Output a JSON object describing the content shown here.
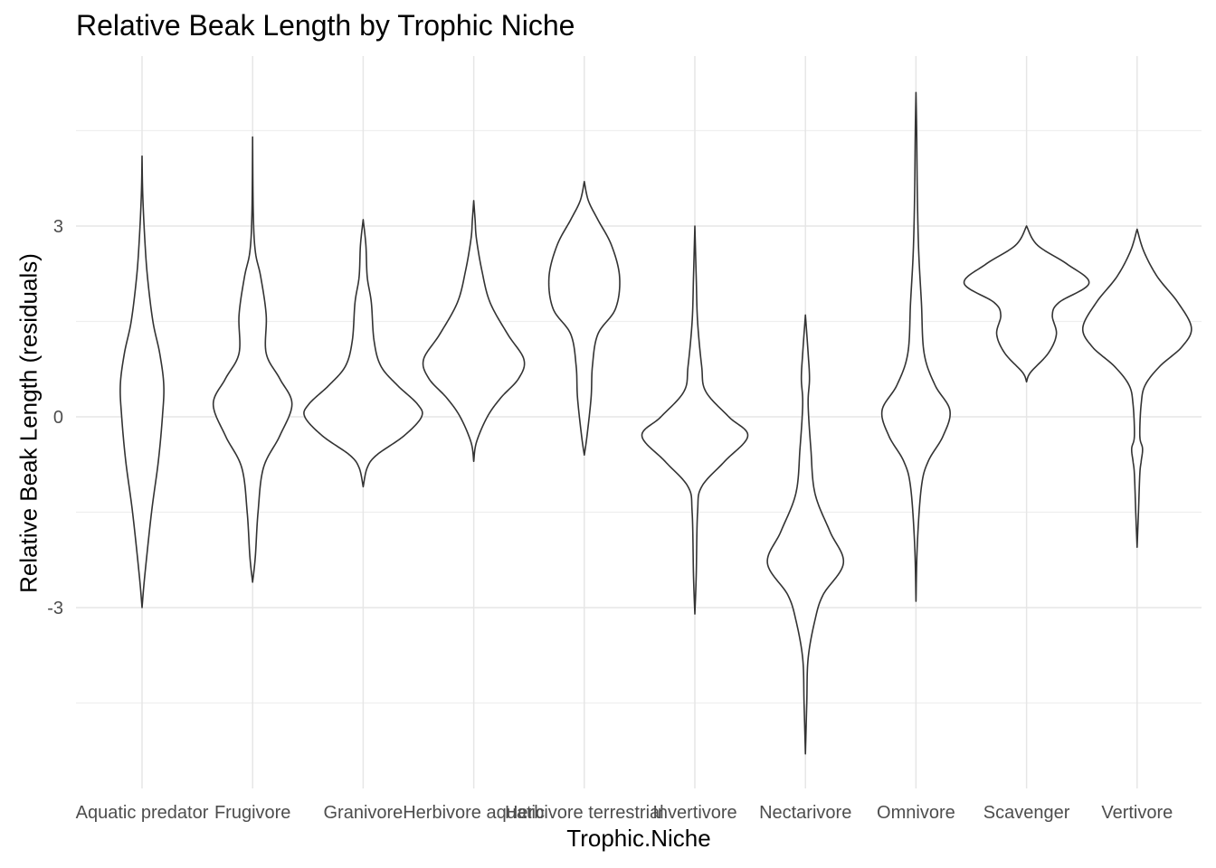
{
  "chart_data": {
    "type": "violin",
    "title": "Relative Beak Length by Trophic Niche",
    "xlabel": "Trophic.Niche",
    "ylabel": "Relative Beak Length (residuals)",
    "categories": [
      "Aquatic predator",
      "Frugivore",
      "Granivore",
      "Herbivore aquatic",
      "Herbivore terrestrial",
      "Invertivore",
      "Nectarivore",
      "Omnivore",
      "Scavenger",
      "Vertivore"
    ],
    "y_ticks": [
      -3,
      0,
      3
    ],
    "y_tick_labels": [
      "-3",
      "0",
      "3"
    ],
    "ylim": [
      -5.8,
      5.7
    ],
    "grid": true,
    "violins": [
      {
        "name": "Aquatic predator",
        "min": -3.0,
        "max": 4.1,
        "profile": [
          [
            -3.0,
            0.0
          ],
          [
            -2.5,
            0.02
          ],
          [
            -1.5,
            0.07
          ],
          [
            -0.7,
            0.12
          ],
          [
            0.0,
            0.15
          ],
          [
            0.5,
            0.16
          ],
          [
            1.0,
            0.13
          ],
          [
            1.5,
            0.08
          ],
          [
            2.2,
            0.04
          ],
          [
            2.8,
            0.02
          ],
          [
            3.5,
            0.005
          ],
          [
            4.1,
            0.0
          ]
        ]
      },
      {
        "name": "Frugivore",
        "min": -2.6,
        "max": 4.4,
        "profile": [
          [
            -2.6,
            0.0
          ],
          [
            -2.2,
            0.02
          ],
          [
            -1.5,
            0.04
          ],
          [
            -0.8,
            0.08
          ],
          [
            -0.3,
            0.2
          ],
          [
            0.2,
            0.29
          ],
          [
            0.6,
            0.2
          ],
          [
            1.0,
            0.1
          ],
          [
            1.6,
            0.1
          ],
          [
            2.2,
            0.06
          ],
          [
            2.6,
            0.02
          ],
          [
            3.2,
            0.005
          ],
          [
            4.4,
            0.0
          ]
        ]
      },
      {
        "name": "Granivore",
        "min": -1.1,
        "max": 3.1,
        "profile": [
          [
            -1.1,
            0.0
          ],
          [
            -0.8,
            0.03
          ],
          [
            -0.6,
            0.1
          ],
          [
            -0.3,
            0.3
          ],
          [
            0.0,
            0.43
          ],
          [
            0.2,
            0.4
          ],
          [
            0.5,
            0.25
          ],
          [
            0.8,
            0.13
          ],
          [
            1.2,
            0.08
          ],
          [
            1.8,
            0.06
          ],
          [
            2.2,
            0.03
          ],
          [
            2.7,
            0.02
          ],
          [
            3.1,
            0.0
          ]
        ]
      },
      {
        "name": "Herbivore aquatic",
        "min": -0.7,
        "max": 3.4,
        "profile": [
          [
            -0.7,
            0.0
          ],
          [
            -0.4,
            0.02
          ],
          [
            0.0,
            0.1
          ],
          [
            0.3,
            0.2
          ],
          [
            0.6,
            0.33
          ],
          [
            0.9,
            0.37
          ],
          [
            1.3,
            0.25
          ],
          [
            1.8,
            0.12
          ],
          [
            2.3,
            0.06
          ],
          [
            2.8,
            0.02
          ],
          [
            3.1,
            0.01
          ],
          [
            3.4,
            0.0
          ]
        ]
      },
      {
        "name": "Herbivore terrestrial",
        "min": -0.6,
        "max": 3.7,
        "profile": [
          [
            -0.6,
            0.0
          ],
          [
            -0.3,
            0.02
          ],
          [
            0.3,
            0.05
          ],
          [
            0.8,
            0.06
          ],
          [
            1.3,
            0.1
          ],
          [
            1.7,
            0.23
          ],
          [
            2.2,
            0.26
          ],
          [
            2.7,
            0.2
          ],
          [
            3.1,
            0.1
          ],
          [
            3.4,
            0.03
          ],
          [
            3.7,
            0.0
          ]
        ]
      },
      {
        "name": "Invertivore",
        "min": -3.1,
        "max": 3.0,
        "profile": [
          [
            -3.1,
            0.0
          ],
          [
            -2.5,
            0.01
          ],
          [
            -1.5,
            0.02
          ],
          [
            -1.1,
            0.05
          ],
          [
            -0.7,
            0.22
          ],
          [
            -0.3,
            0.39
          ],
          [
            0.0,
            0.25
          ],
          [
            0.4,
            0.08
          ],
          [
            0.8,
            0.05
          ],
          [
            1.5,
            0.02
          ],
          [
            2.2,
            0.01
          ],
          [
            3.0,
            0.0
          ]
        ]
      },
      {
        "name": "Nectarivore",
        "min": -5.3,
        "max": 1.6,
        "profile": [
          [
            -5.3,
            0.0
          ],
          [
            -4.5,
            0.01
          ],
          [
            -3.8,
            0.02
          ],
          [
            -3.2,
            0.07
          ],
          [
            -2.8,
            0.13
          ],
          [
            -2.3,
            0.28
          ],
          [
            -1.8,
            0.18
          ],
          [
            -1.2,
            0.07
          ],
          [
            -0.5,
            0.04
          ],
          [
            0.2,
            0.02
          ],
          [
            0.6,
            0.03
          ],
          [
            1.0,
            0.02
          ],
          [
            1.6,
            0.0
          ]
        ]
      },
      {
        "name": "Omnivore",
        "min": -2.9,
        "max": 5.1,
        "profile": [
          [
            -2.9,
            0.0
          ],
          [
            -2.0,
            0.01
          ],
          [
            -1.1,
            0.04
          ],
          [
            -0.7,
            0.09
          ],
          [
            -0.3,
            0.2
          ],
          [
            0.1,
            0.25
          ],
          [
            0.5,
            0.14
          ],
          [
            1.0,
            0.06
          ],
          [
            1.8,
            0.04
          ],
          [
            2.6,
            0.02
          ],
          [
            3.5,
            0.01
          ],
          [
            4.5,
            0.005
          ],
          [
            5.1,
            0.0
          ]
        ]
      },
      {
        "name": "Scavenger",
        "min": 0.55,
        "max": 3.0,
        "profile": [
          [
            0.55,
            0.0
          ],
          [
            0.7,
            0.03
          ],
          [
            1.0,
            0.16
          ],
          [
            1.3,
            0.22
          ],
          [
            1.6,
            0.19
          ],
          [
            1.8,
            0.24
          ],
          [
            2.1,
            0.46
          ],
          [
            2.4,
            0.3
          ],
          [
            2.7,
            0.08
          ],
          [
            3.0,
            0.0
          ]
        ]
      },
      {
        "name": "Vertivore",
        "min": -2.05,
        "max": 2.95,
        "profile": [
          [
            -2.05,
            0.0
          ],
          [
            -1.5,
            0.01
          ],
          [
            -0.9,
            0.02
          ],
          [
            -0.7,
            0.03
          ],
          [
            -0.5,
            0.04
          ],
          [
            -0.3,
            0.02
          ],
          [
            0.2,
            0.03
          ],
          [
            0.5,
            0.06
          ],
          [
            0.8,
            0.17
          ],
          [
            1.1,
            0.33
          ],
          [
            1.4,
            0.4
          ],
          [
            1.8,
            0.3
          ],
          [
            2.2,
            0.15
          ],
          [
            2.6,
            0.05
          ],
          [
            2.95,
            0.0
          ]
        ]
      }
    ]
  }
}
